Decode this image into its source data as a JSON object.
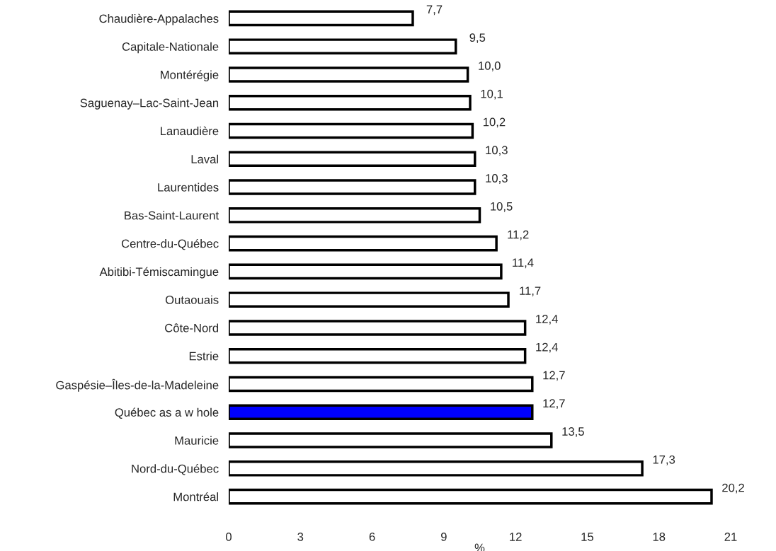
{
  "chart_data": {
    "type": "bar",
    "orientation": "horizontal",
    "xlabel": "%",
    "categories": [
      "Chaudière-Appalaches",
      "Capitale-Nationale",
      "Montérégie",
      "Saguenay–Lac-Saint-Jean",
      "Lanaudière",
      "Laval",
      "Laurentides",
      "Bas-Saint-Laurent",
      "Centre-du-Québec",
      "Abitibi-Témiscamingue",
      "Outaouais",
      "Côte-Nord",
      "Estrie",
      "Gaspésie–Îles-de-la-Madeleine",
      "Québec as a w hole",
      "Mauricie",
      "Nord-du-Québec",
      "Montréal"
    ],
    "values": [
      7.7,
      9.5,
      10.0,
      10.1,
      10.2,
      10.3,
      10.3,
      10.5,
      11.2,
      11.4,
      11.7,
      12.4,
      12.4,
      12.7,
      12.7,
      13.5,
      17.3,
      20.2
    ],
    "value_labels": [
      "7,7",
      "9,5",
      "10,0",
      "10,1",
      "10,2",
      "10,3",
      "10,3",
      "10,5",
      "11,2",
      "11,4",
      "11,7",
      "12,4",
      "12,4",
      "12,7",
      "12,7",
      "13,5",
      "17,3",
      "20,2"
    ],
    "colors": [
      "#ffffff",
      "#ffffff",
      "#ffffff",
      "#ffffff",
      "#ffffff",
      "#ffffff",
      "#ffffff",
      "#ffffff",
      "#ffffff",
      "#ffffff",
      "#ffffff",
      "#ffffff",
      "#ffffff",
      "#ffffff",
      "#0000ff",
      "#ffffff",
      "#ffffff",
      "#ffffff"
    ],
    "xlim": [
      0,
      21
    ],
    "xticks": [
      0,
      3,
      6,
      9,
      12,
      15,
      18,
      21
    ],
    "grid": false,
    "legend": false
  }
}
